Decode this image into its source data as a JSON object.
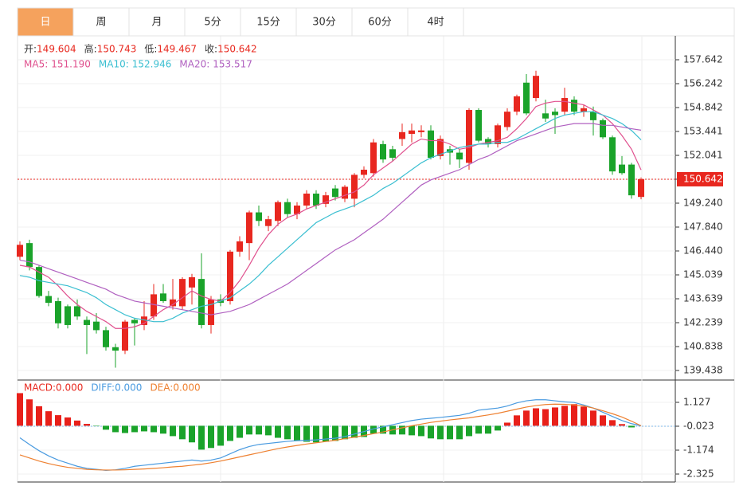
{
  "tabs": [
    "日",
    "周",
    "月",
    "5分",
    "15分",
    "30分",
    "60分",
    "4时"
  ],
  "selected_tab": 0,
  "chart_data": [
    {
      "type": "candlestick",
      "ohlc_labels": [
        "开:",
        "高:",
        "低:",
        "收:"
      ],
      "ohlc_values": [
        149.604,
        150.743,
        149.467,
        150.642
      ],
      "up_color": "#e8271f",
      "down_color": "#1aa32a",
      "open": [
        146.1,
        146.9,
        145.5,
        143.8,
        143.5,
        143.2,
        143.2,
        142.4,
        142.3,
        141.8,
        140.8,
        140.6,
        142.4,
        142.1,
        142.6,
        143.95,
        143.2,
        143.2,
        144.3,
        144.8,
        142.1,
        143.6,
        143.5,
        146.4,
        146.9,
        148.7,
        147.9,
        148.2,
        149.3,
        148.6,
        149.1,
        149.8,
        149.2,
        150.1,
        149.5,
        149.5,
        150.9,
        151.0,
        152.7,
        152.4,
        153.0,
        153.3,
        153.4,
        153.5,
        152.0,
        152.4,
        152.2,
        151.6,
        154.7,
        153.0,
        152.7,
        153.7,
        154.6,
        156.3,
        155.4,
        154.5,
        154.6,
        154.6,
        155.3,
        154.6,
        154.6,
        154.1,
        153.1,
        151.5,
        151.5,
        149.604
      ],
      "high": [
        147.0,
        147.1,
        145.6,
        144.1,
        143.7,
        143.3,
        143.6,
        142.6,
        142.8,
        142.0,
        141.0,
        142.4,
        142.5,
        143.5,
        144.5,
        144.5,
        144.8,
        144.9,
        145.1,
        146.3,
        143.8,
        143.9,
        146.5,
        147.3,
        148.8,
        149.1,
        148.5,
        149.4,
        149.5,
        149.3,
        150.0,
        150.0,
        149.9,
        150.3,
        150.3,
        151.0,
        151.4,
        153.0,
        152.9,
        152.6,
        153.9,
        153.9,
        153.8,
        153.8,
        153.2,
        152.6,
        152.4,
        154.8,
        154.8,
        153.1,
        153.9,
        154.8,
        155.6,
        156.8,
        157.0,
        155.3,
        154.8,
        156.0,
        155.5,
        155.0,
        154.9,
        154.2,
        153.2,
        152.0,
        151.6,
        150.743
      ],
      "low": [
        145.9,
        145.3,
        143.7,
        143.2,
        141.9,
        141.9,
        142.4,
        140.4,
        141.6,
        140.6,
        139.6,
        140.4,
        140.9,
        141.8,
        142.4,
        143.4,
        143.0,
        143.0,
        143.3,
        141.9,
        141.6,
        143.2,
        143.3,
        146.1,
        145.9,
        147.9,
        147.6,
        147.9,
        148.4,
        148.3,
        148.9,
        148.9,
        149.0,
        149.4,
        149.3,
        149.0,
        150.7,
        150.8,
        151.6,
        151.7,
        152.6,
        152.8,
        153.1,
        151.8,
        151.8,
        151.5,
        151.3,
        151.2,
        152.8,
        152.5,
        152.5,
        153.5,
        154.4,
        154.4,
        155.2,
        154.0,
        153.3,
        154.4,
        154.4,
        154.3,
        153.2,
        153.0,
        150.9,
        150.9,
        149.5,
        149.467
      ],
      "close": [
        146.8,
        145.5,
        143.8,
        143.4,
        142.2,
        142.1,
        142.6,
        142.1,
        141.8,
        140.8,
        140.6,
        142.3,
        142.2,
        142.6,
        143.9,
        143.5,
        143.6,
        144.8,
        144.9,
        142.1,
        143.6,
        143.4,
        146.4,
        147.0,
        148.7,
        148.2,
        148.3,
        149.3,
        148.6,
        149.1,
        149.8,
        149.1,
        149.7,
        149.6,
        150.2,
        150.9,
        151.2,
        152.8,
        151.8,
        151.9,
        153.4,
        153.5,
        153.5,
        151.9,
        153.0,
        152.2,
        151.8,
        154.7,
        152.9,
        152.7,
        153.8,
        154.6,
        155.5,
        154.5,
        156.7,
        154.2,
        154.4,
        155.4,
        154.6,
        154.8,
        154.1,
        153.1,
        151.1,
        151.0,
        149.7,
        150.642
      ],
      "series": [
        {
          "name": "MA5:",
          "color": "#e0508e",
          "current": {
            "value": 151.19,
            "label": "151.190"
          },
          "values": [
            145.6,
            145.5,
            145.2,
            144.9,
            144.4,
            143.8,
            143.3,
            142.9,
            142.6,
            142.3,
            141.9,
            141.9,
            142.0,
            142.2,
            142.6,
            143.0,
            143.3,
            143.7,
            144.1,
            143.8,
            143.6,
            143.5,
            144.0,
            144.7,
            145.6,
            146.6,
            147.4,
            148.0,
            148.4,
            148.6,
            148.9,
            149.1,
            149.3,
            149.5,
            149.7,
            149.9,
            150.3,
            150.9,
            151.3,
            151.7,
            152.2,
            152.7,
            153.0,
            152.9,
            152.9,
            152.7,
            152.4,
            152.5,
            152.7,
            152.8,
            152.9,
            153.1,
            153.6,
            154.2,
            154.9,
            155.1,
            155.2,
            155.2,
            155.1,
            155.0,
            154.7,
            154.4,
            153.9,
            153.2,
            152.4,
            151.19
          ]
        },
        {
          "name": "MA10:",
          "color": "#3bbfd1",
          "current": 152.946,
          "values": [
            145.0,
            144.9,
            144.7,
            144.6,
            144.5,
            144.4,
            144.2,
            144.0,
            143.7,
            143.3,
            143.0,
            142.7,
            142.5,
            142.4,
            142.3,
            142.3,
            142.5,
            142.8,
            143.0,
            143.2,
            143.3,
            143.5,
            143.7,
            144.1,
            144.5,
            145.0,
            145.6,
            146.1,
            146.6,
            147.1,
            147.6,
            148.1,
            148.4,
            148.7,
            148.9,
            149.1,
            149.4,
            149.7,
            150.1,
            150.4,
            150.8,
            151.2,
            151.6,
            151.9,
            152.1,
            152.3,
            152.5,
            152.6,
            152.7,
            152.7,
            152.8,
            152.8,
            153.0,
            153.3,
            153.6,
            153.9,
            154.2,
            154.4,
            154.5,
            154.6,
            154.6,
            154.4,
            154.2,
            153.9,
            153.5,
            152.946
          ]
        },
        {
          "name": "MA20:",
          "color": "#b060c0",
          "current": 153.517,
          "values": [
            145.9,
            145.8,
            145.6,
            145.4,
            145.2,
            145.0,
            144.8,
            144.6,
            144.4,
            144.2,
            143.9,
            143.7,
            143.5,
            143.4,
            143.3,
            143.2,
            143.1,
            143.0,
            142.9,
            142.8,
            142.7,
            142.8,
            142.9,
            143.1,
            143.3,
            143.6,
            143.9,
            144.2,
            144.5,
            144.9,
            145.3,
            145.7,
            146.1,
            146.5,
            146.8,
            147.1,
            147.5,
            147.9,
            148.3,
            148.8,
            149.3,
            149.8,
            150.3,
            150.6,
            150.8,
            151.0,
            151.2,
            151.5,
            151.8,
            152.0,
            152.3,
            152.6,
            152.9,
            153.1,
            153.3,
            153.5,
            153.7,
            153.8,
            153.9,
            153.9,
            153.9,
            153.8,
            153.8,
            153.7,
            153.6,
            153.517
          ]
        }
      ],
      "ylim": [
        138.971,
        159.042
      ],
      "yticks": [
        157.642,
        156.242,
        154.842,
        153.441,
        152.041,
        150.642,
        {
          "value": 149.24,
          "label": "149.240"
        },
        {
          "value": 147.84,
          "label": "147.840"
        },
        {
          "value": 146.44,
          "label": "146.440"
        },
        145.039,
        143.639,
        142.239,
        140.838,
        139.438
      ],
      "highlight_tick": 5,
      "grid": true
    },
    {
      "type": "macd",
      "up_color": "#e8201a",
      "down_color": "#1aa32a",
      "series": [
        {
          "name": "MACD:",
          "color": "#e8291f",
          "current": {
            "value": 0,
            "label": "0.000"
          },
          "style": "bars",
          "values": [
            1.57,
            1.27,
            0.94,
            0.7,
            0.51,
            0.4,
            0.25,
            0.09,
            -0.02,
            -0.19,
            -0.31,
            -0.35,
            -0.31,
            -0.27,
            -0.31,
            -0.38,
            -0.5,
            -0.65,
            -0.8,
            -1.15,
            -1.07,
            -0.96,
            -0.73,
            -0.58,
            -0.42,
            -0.42,
            -0.46,
            -0.58,
            -0.65,
            -0.73,
            -0.77,
            -0.8,
            -0.77,
            -0.73,
            -0.65,
            -0.58,
            -0.54,
            -0.38,
            -0.38,
            -0.42,
            -0.42,
            -0.46,
            -0.5,
            -0.61,
            -0.65,
            -0.65,
            -0.65,
            -0.5,
            -0.38,
            -0.38,
            -0.23,
            0.15,
            0.5,
            0.73,
            0.84,
            0.8,
            0.88,
            0.96,
            1.04,
            0.92,
            0.73,
            0.5,
            0.27,
            0.08,
            -0.08,
            0
          ]
        },
        {
          "name": "DIFF:",
          "color": "#4a9be0",
          "current": {
            "value": 0,
            "label": "0.000"
          },
          "style": "line",
          "values": [
            -0.58,
            -0.9,
            -1.2,
            -1.45,
            -1.65,
            -1.8,
            -1.95,
            -2.05,
            -2.1,
            -2.15,
            -2.12,
            -2.05,
            -1.95,
            -1.9,
            -1.85,
            -1.8,
            -1.75,
            -1.7,
            -1.65,
            -1.7,
            -1.65,
            -1.55,
            -1.35,
            -1.15,
            -1.0,
            -0.9,
            -0.85,
            -0.8,
            -0.75,
            -0.72,
            -0.7,
            -0.68,
            -0.64,
            -0.6,
            -0.52,
            -0.4,
            -0.28,
            -0.15,
            -0.05,
            0.05,
            0.15,
            0.25,
            0.32,
            0.36,
            0.4,
            0.45,
            0.5,
            0.6,
            0.75,
            0.8,
            0.85,
            0.95,
            1.1,
            1.2,
            1.25,
            1.25,
            1.2,
            1.15,
            1.12,
            1.0,
            0.85,
            0.65,
            0.45,
            0.25,
            0.1,
            0
          ]
        },
        {
          "name": "DEA:",
          "color": "#ee8030",
          "current": {
            "value": 0,
            "label": "0.000"
          },
          "style": "line",
          "values": [
            -1.4,
            -1.55,
            -1.7,
            -1.82,
            -1.92,
            -2.0,
            -2.05,
            -2.1,
            -2.12,
            -2.13,
            -2.13,
            -2.12,
            -2.1,
            -2.08,
            -2.05,
            -2.02,
            -1.98,
            -1.95,
            -1.9,
            -1.85,
            -1.78,
            -1.7,
            -1.6,
            -1.5,
            -1.4,
            -1.3,
            -1.2,
            -1.1,
            -1.02,
            -0.95,
            -0.88,
            -0.82,
            -0.76,
            -0.7,
            -0.62,
            -0.55,
            -0.47,
            -0.38,
            -0.3,
            -0.2,
            -0.1,
            0.0,
            0.08,
            0.16,
            0.22,
            0.28,
            0.33,
            0.38,
            0.45,
            0.52,
            0.6,
            0.7,
            0.8,
            0.9,
            0.97,
            1.02,
            1.04,
            1.03,
            1.0,
            0.95,
            0.85,
            0.72,
            0.58,
            0.42,
            0.22,
            0
          ]
        }
      ],
      "ylim": [
        -2.708,
        2.162
      ],
      "yticks": [
        1.127,
        -0.023,
        -1.174,
        -2.325
      ],
      "highlight_tick": 1,
      "grid": true
    }
  ]
}
